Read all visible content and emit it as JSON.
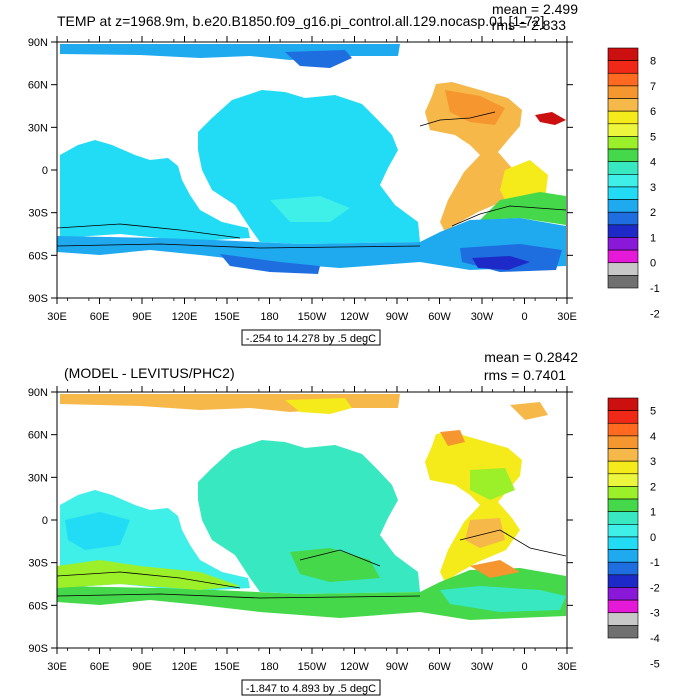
{
  "panels": [
    {
      "title": "TEMP at z=1968.9m, b.e20.B1850.f09_g16.pi_control.all.129.nocasp.01 [1-72]",
      "mean_label": "mean = 2.499",
      "rms_label": "rms = 2.833",
      "range_label": "-.254 to 14.278 by .5 degC",
      "colorbar_labels": [
        "8",
        "7",
        "6",
        "5",
        "4",
        "3",
        "2",
        "1",
        "0",
        "-1",
        "-2"
      ],
      "colorbar_colors": [
        "#cc1010",
        "#f02818",
        "#ff6a20",
        "#f5962e",
        "#f7b84a",
        "#f5ea1a",
        "#ecf63c",
        "#9cf02a",
        "#44d84a",
        "#38e8c0",
        "#3ef0e8",
        "#22dcf5",
        "#1faaf0",
        "#1e6ee0",
        "#1e2ac8",
        "#8a18d8",
        "#e41ad8",
        "#c8c8c8",
        "#707070"
      ]
    },
    {
      "title": "(MODEL - LEVITUS/PHC2)",
      "mean_label": "mean = 0.2842",
      "rms_label": "rms = 0.7401",
      "range_label": "-1.847 to 4.893 by .5 degC",
      "colorbar_labels": [
        "5",
        "4",
        "3",
        "2",
        "1",
        "0",
        "-1",
        "-2",
        "-3",
        "-4",
        "-5"
      ],
      "colorbar_colors": [
        "#cc1010",
        "#f02818",
        "#ff6a20",
        "#f5962e",
        "#f7b84a",
        "#f5ea1a",
        "#ecf63c",
        "#9cf02a",
        "#44d84a",
        "#38e8c0",
        "#3ef0e8",
        "#22dcf5",
        "#1faaf0",
        "#1e6ee0",
        "#1e2ac8",
        "#8a18d8",
        "#e41ad8",
        "#c8c8c8",
        "#707070"
      ]
    }
  ],
  "axes": {
    "lat_labels": [
      "90N",
      "60N",
      "30N",
      "0",
      "30S",
      "60S",
      "90S"
    ],
    "lon_labels": [
      "30E",
      "60E",
      "90E",
      "120E",
      "150E",
      "180",
      "150W",
      "120W",
      "90W",
      "60W",
      "30W",
      "0",
      "30E"
    ]
  }
}
